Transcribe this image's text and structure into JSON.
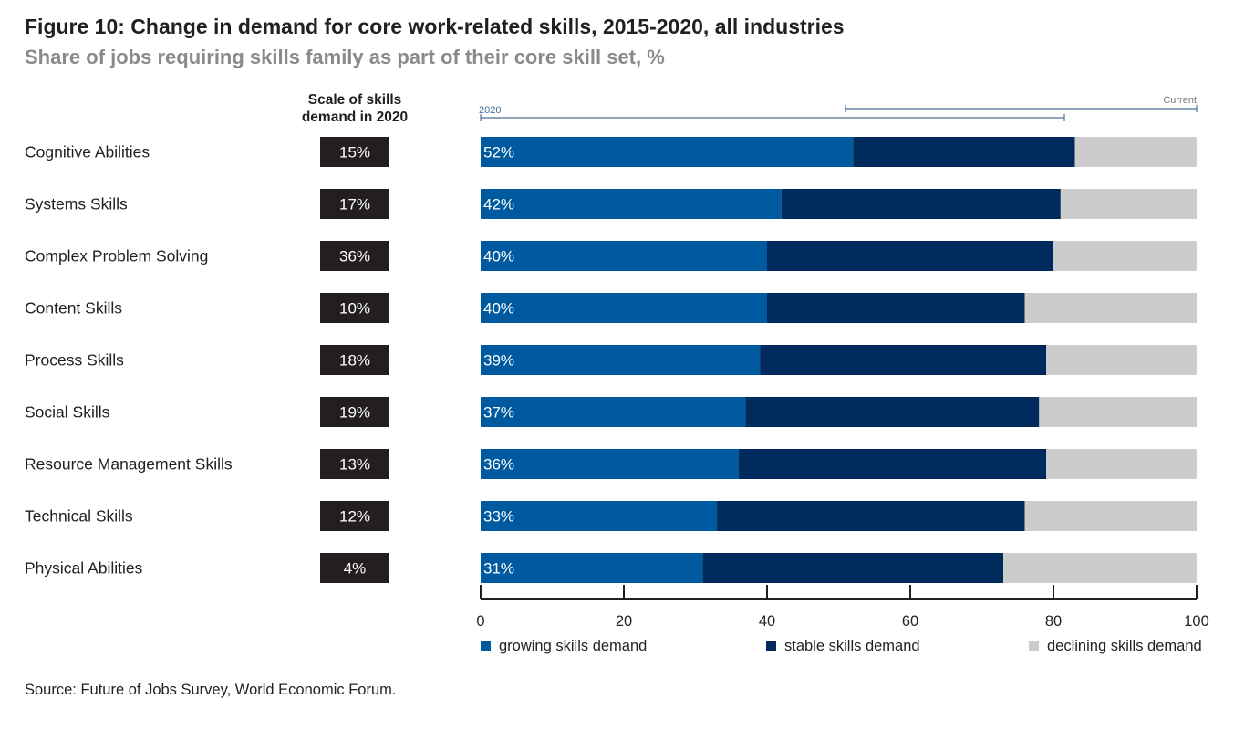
{
  "figure": {
    "title": "Figure 10: Change in demand for core work-related skills, 2015-2020, all industries",
    "subtitle": "Share of jobs requiring skills family as part of their core skill set, %",
    "scale_header": "Scale of skills demand in 2020",
    "source": "Source: Future of Jobs Survey, World Economic Forum.",
    "label_2020": "2020",
    "label_current": "Current"
  },
  "colors": {
    "growing": "#005aa0",
    "stable": "#002a5c",
    "declining": "#cccccd",
    "scale_box": "#231f20",
    "axis": "#231f20",
    "bracket": "#4b6f95"
  },
  "chart_data": {
    "type": "bar",
    "orientation": "horizontal",
    "stacked": true,
    "categories": [
      "Cognitive Abilities",
      "Systems Skills",
      "Complex Problem Solving",
      "Content Skills",
      "Process Skills",
      "Social Skills",
      "Resource Management Skills",
      "Technical Skills",
      "Physical Abilities"
    ],
    "scale_2020": [
      "15%",
      "17%",
      "36%",
      "10%",
      "18%",
      "19%",
      "13%",
      "12%",
      "4%"
    ],
    "series": [
      {
        "name": "growing skills demand",
        "values": [
          52,
          42,
          40,
          40,
          39,
          37,
          36,
          33,
          31
        ]
      },
      {
        "name": "stable skills demand",
        "values": [
          31,
          39,
          40,
          36,
          40,
          41,
          43,
          43,
          42
        ]
      },
      {
        "name": "declining skills demand",
        "values": [
          17,
          19,
          20,
          24,
          21,
          22,
          21,
          24,
          27
        ]
      }
    ],
    "data_labels": [
      "52%",
      "42%",
      "40%",
      "40%",
      "39%",
      "37%",
      "36%",
      "33%",
      "31%"
    ],
    "xlim": [
      0,
      100
    ],
    "xticks": [
      0,
      20,
      40,
      60,
      80,
      100
    ],
    "grid": false,
    "legend_position": "bottom"
  }
}
